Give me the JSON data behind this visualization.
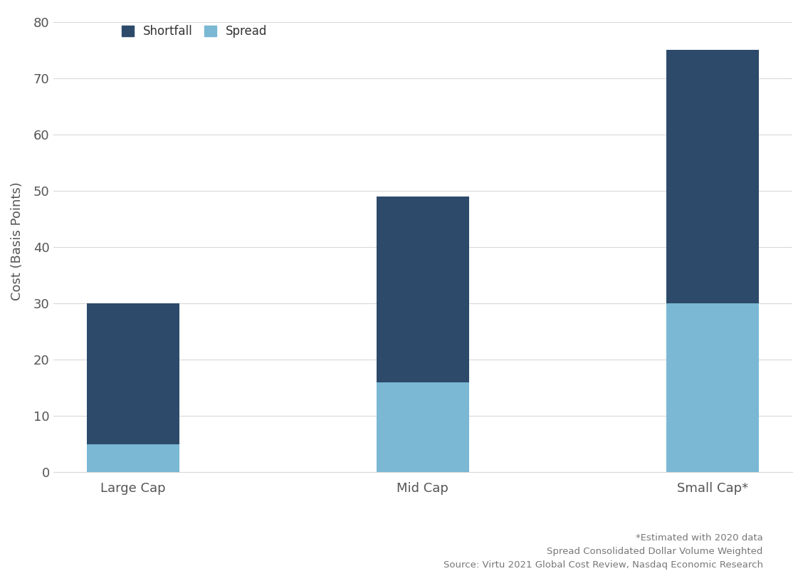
{
  "categories": [
    "Large Cap",
    "Mid Cap",
    "Small Cap*"
  ],
  "shortfall_values": [
    30,
    49,
    75
  ],
  "spread_values": [
    5,
    16,
    30
  ],
  "shortfall_color": "#2d4a6b",
  "spread_color": "#7ab8d4",
  "ylabel": "Cost (Basis Points)",
  "ylim": [
    0,
    82
  ],
  "yticks": [
    0,
    10,
    20,
    30,
    40,
    50,
    60,
    70,
    80
  ],
  "legend_labels": [
    "Shortfall",
    "Spread"
  ],
  "bar_width": 0.32,
  "footnote_lines": [
    "*Estimated with 2020 data",
    "Spread Consolidated Dollar Volume Weighted",
    "Source: Virtu 2021 Global Cost Review, Nasdaq Economic Research"
  ],
  "background_color": "#ffffff",
  "grid_color": "#d9d9d9",
  "footnote_fontsize": 9.5,
  "axis_label_fontsize": 13,
  "tick_fontsize": 13,
  "legend_fontsize": 12,
  "ylabel_color": "#555555",
  "tick_color": "#555555"
}
